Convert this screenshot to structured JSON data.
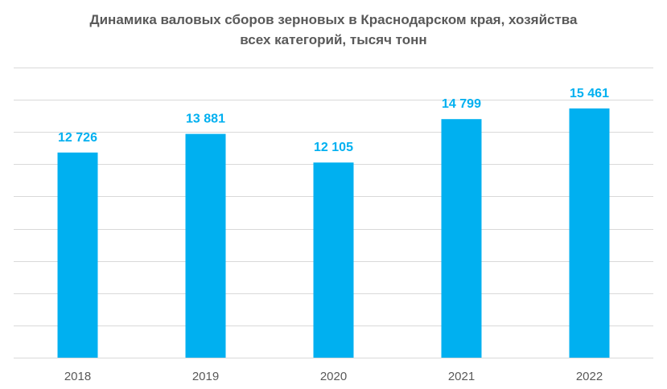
{
  "chart_data": {
    "type": "bar",
    "title": "Динамика валовых сборов зерновых в Краснодарском края, хозяйства всех категорий, тысяч тонн",
    "title_lines": [
      "Динамика валовых сборов зерновых в Краснодарском края, хозяйства",
      "всех категорий, тысяч тонн"
    ],
    "categories": [
      "2018",
      "2019",
      "2020",
      "2021",
      "2022"
    ],
    "values": [
      12726,
      13881,
      12105,
      14799,
      15461
    ],
    "value_labels": [
      "12 726",
      "13 881",
      "12 105",
      "14 799",
      "15 461"
    ],
    "xlabel": "",
    "ylabel": "",
    "ylim": [
      0,
      18000
    ],
    "grid_step": 2000,
    "grid": true,
    "legend": "none",
    "bar_color": "#00b0f0",
    "label_color": "#00b0f0"
  }
}
